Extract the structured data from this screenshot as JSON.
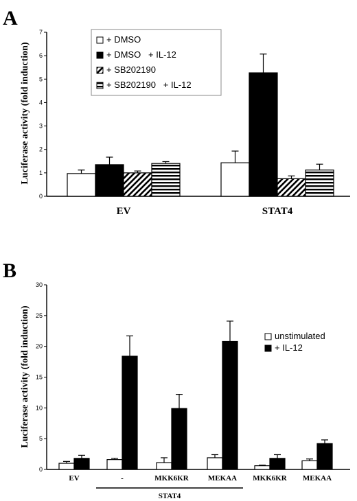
{
  "chart_data": [
    {
      "panel_label": "A",
      "type": "bar",
      "ylabel": "Luciferase activity (fold induction)",
      "ylim": [
        0,
        7
      ],
      "yticks": [
        "0",
        "1",
        "2",
        "3",
        "4",
        "5",
        "6",
        "7"
      ],
      "categories": [
        "EV",
        "STAT4"
      ],
      "legend_position": "top-left",
      "series": [
        {
          "name": "+ DMSO",
          "pattern": "open",
          "values": [
            0.97,
            1.43
          ],
          "errors": [
            0.15,
            0.5
          ]
        },
        {
          "name": "+ DMSO   + IL-12",
          "pattern": "solid",
          "values": [
            1.35,
            5.27
          ],
          "errors": [
            0.32,
            0.8
          ]
        },
        {
          "name": "+ SB202190",
          "pattern": "diagonal",
          "values": [
            1.0,
            0.75
          ],
          "errors": [
            0.08,
            0.12
          ]
        },
        {
          "name": "+ SB202190   + IL-12",
          "pattern": "horizontal",
          "values": [
            1.4,
            1.12
          ],
          "errors": [
            0.08,
            0.25
          ]
        }
      ]
    },
    {
      "panel_label": "B",
      "type": "bar",
      "ylabel": "Luciferase activity (fold induction)",
      "ylim": [
        0,
        30
      ],
      "yticks": [
        "0",
        "5",
        "10",
        "15",
        "20",
        "25",
        "30"
      ],
      "categories": [
        "EV",
        "-",
        "MKK6KR",
        "MEKAA",
        "MKK6KR",
        "MEKAA"
      ],
      "group_label": "STAT4",
      "group_span": [
        1,
        3
      ],
      "legend_position": "right",
      "series": [
        {
          "name": "unstimulated",
          "pattern": "open",
          "values": [
            1.0,
            1.6,
            1.1,
            1.9,
            0.6,
            1.4
          ],
          "errors": [
            0.3,
            0.2,
            0.8,
            0.5,
            0.1,
            0.3
          ]
        },
        {
          "name": "+ IL-12",
          "pattern": "solid",
          "values": [
            1.8,
            18.4,
            9.9,
            20.8,
            1.8,
            4.2
          ],
          "errors": [
            0.5,
            3.3,
            2.3,
            3.3,
            0.6,
            0.6
          ]
        }
      ]
    }
  ]
}
